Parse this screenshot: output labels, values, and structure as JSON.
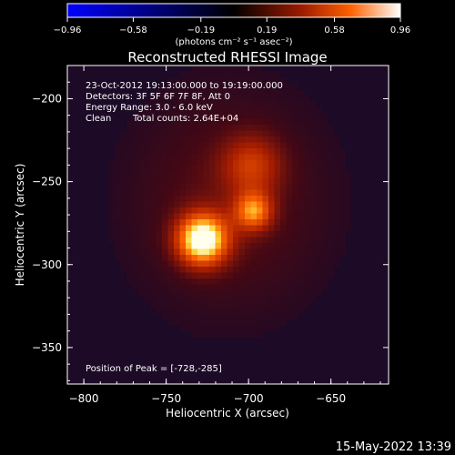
{
  "chart_data": {
    "type": "heatmap",
    "title": "Reconstructed RHESSI Image",
    "xlabel": "Heliocentric X (arcsec)",
    "ylabel": "Heliocentric Y (arcsec)",
    "xlim": [
      -810,
      -615
    ],
    "ylim": [
      -372,
      -180
    ],
    "x_ticks": [
      -800,
      -750,
      -700,
      -650
    ],
    "x_tick_labels": [
      "−800",
      "−750",
      "−700",
      "−650"
    ],
    "y_ticks": [
      -200,
      -250,
      -300,
      -350
    ],
    "y_tick_labels": [
      "−200",
      "−250",
      "−300",
      "−350"
    ],
    "colorbar": {
      "min": -0.96,
      "max": 0.96,
      "ticks": [
        -0.96,
        -0.58,
        -0.19,
        0.19,
        0.58,
        0.96
      ],
      "tick_labels": [
        "−0.96",
        "−0.58",
        "−0.19",
        "0.19",
        "0.58",
        "0.96"
      ],
      "units": "(photons cm⁻² s⁻¹ asec⁻²)",
      "colormap": [
        "#0000ff",
        "#000000",
        "#9a1a00",
        "#ff6000",
        "#ffffff"
      ]
    },
    "sources": [
      {
        "x": -728,
        "y": -285,
        "peak": 0.96,
        "sigma": 11
      },
      {
        "x": -697,
        "y": -268,
        "peak": 0.58,
        "sigma": 8
      },
      {
        "x": -698,
        "y": -240,
        "peak": 0.35,
        "sigma": 13
      }
    ],
    "annotations": {
      "time": "23-Oct-2012 19:13:00.000 to 19:19:00.000",
      "detectors": "Detectors: 3F 5F 6F 7F 8F, Att 0",
      "energy": "Energy Range: 3.0 - 6.0 keV",
      "clean_label": "Clean",
      "total_counts": "Total counts: 2.64E+04",
      "peak_position": "Position of Peak = [-728,-285]"
    }
  },
  "footer_date": "15-May-2022 13:39"
}
